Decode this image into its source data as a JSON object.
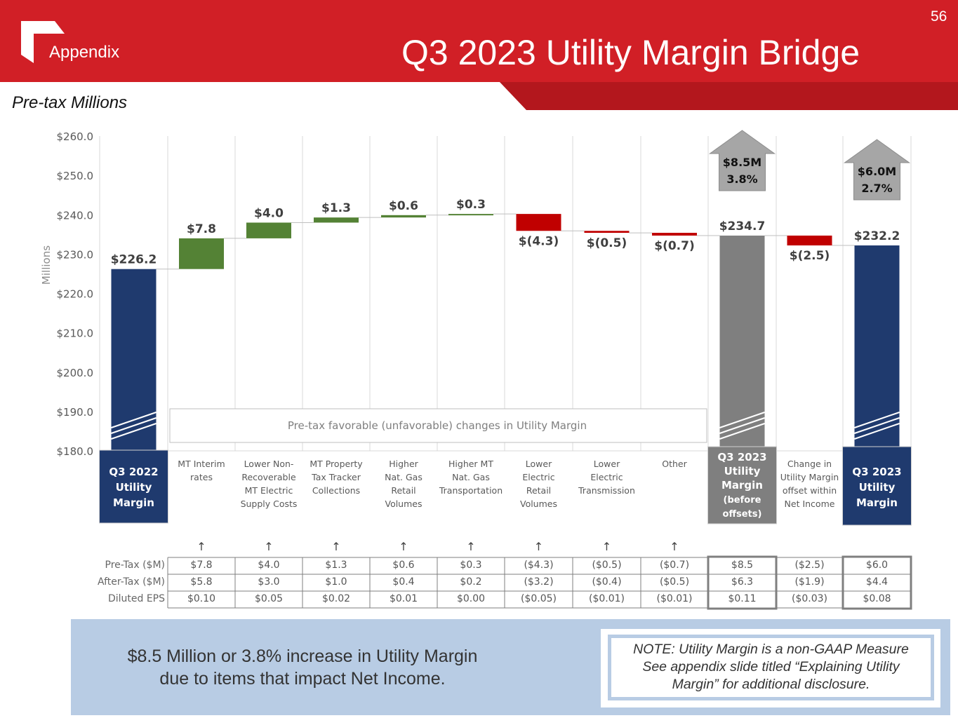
{
  "header": {
    "section": "Appendix",
    "title": "Q3 2023 Utility Margin Bridge",
    "page_number": "56",
    "subtitle": "Pre-tax Millions"
  },
  "colors": {
    "header_red": "#d11f26",
    "base_bar": "#1f3a6e",
    "subtotal_bar": "#7f7f7f",
    "increase_bar": "#548235",
    "decrease_bar": "#c00000",
    "callout_arrow": "#a6a6a6",
    "summary_bg": "#b8cce4"
  },
  "chart_data": {
    "type": "bar",
    "subtype": "waterfall",
    "ylabel": "Millions",
    "ylim": [
      180,
      260
    ],
    "yticks": [
      "$180.0",
      "$190.0",
      "$200.0",
      "$210.0",
      "$220.0",
      "$230.0",
      "$240.0",
      "$250.0",
      "$260.0"
    ],
    "ytick_values": [
      180,
      190,
      200,
      210,
      220,
      230,
      240,
      250,
      260
    ],
    "grid": "vertical-category-separators",
    "bracket_label": "Pre-tax favorable (unfavorable) changes in Utility Margin",
    "bars": [
      {
        "category": "Q3 2022 Utility Margin",
        "kind": "total",
        "start": 0,
        "end": 226.2,
        "label": "$226.2",
        "boxed_label": true,
        "color": "base_bar"
      },
      {
        "category": "MT Interim rates",
        "kind": "increase",
        "start": 226.2,
        "end": 234.0,
        "label": "$7.8"
      },
      {
        "category": "Lower Non-Recoverable MT Electric Supply Costs",
        "kind": "increase",
        "start": 234.0,
        "end": 238.0,
        "label": "$4.0"
      },
      {
        "category": "MT Property Tax Tracker Collections",
        "kind": "increase",
        "start": 238.0,
        "end": 239.3,
        "label": "$1.3"
      },
      {
        "category": "Higher Nat. Gas Retail Volumes",
        "kind": "increase",
        "start": 239.3,
        "end": 239.9,
        "label": "$0.6"
      },
      {
        "category": "Higher MT Nat. Gas Transportation",
        "kind": "increase",
        "start": 239.9,
        "end": 240.2,
        "label": "$0.3"
      },
      {
        "category": "Lower Electric Retail Volumes",
        "kind": "decrease",
        "start": 240.2,
        "end": 235.9,
        "label": "$(4.3)"
      },
      {
        "category": "Lower Electric Transmission",
        "kind": "decrease",
        "start": 235.9,
        "end": 235.4,
        "label": "$(0.5)"
      },
      {
        "category": "Other",
        "kind": "decrease",
        "start": 235.4,
        "end": 234.7,
        "label": "$(0.7)"
      },
      {
        "category": "Q3 2023 Utility Margin (before offsets)",
        "kind": "subtotal",
        "start": 0,
        "end": 234.7,
        "label": "$234.7",
        "boxed_label": true,
        "color": "subtotal_bar",
        "callout": {
          "line1": "$8.5M",
          "line2": "3.8%"
        }
      },
      {
        "category": "Change in Utility Margin offset within Net Income",
        "kind": "decrease",
        "start": 234.7,
        "end": 232.2,
        "label": "$(2.5)"
      },
      {
        "category": "Q3 2023 Utility Margin",
        "kind": "total",
        "start": 0,
        "end": 232.2,
        "label": "$232.2",
        "boxed_label": true,
        "color": "base_bar",
        "callout": {
          "line1": "$6.0M",
          "line2": "2.7%"
        }
      }
    ],
    "category_label_lines": [
      [
        "Q3 2022",
        "Utility",
        "Margin"
      ],
      [
        "MT Interim",
        "rates"
      ],
      [
        "Lower Non-",
        "Recoverable",
        "MT Electric",
        "Supply Costs"
      ],
      [
        "MT Property",
        "Tax Tracker",
        "Collections"
      ],
      [
        "Higher",
        "Nat. Gas",
        "Retail",
        "Volumes"
      ],
      [
        "Higher MT",
        "Nat. Gas",
        "Transportation"
      ],
      [
        "Lower",
        "Electric",
        "Retail",
        "Volumes"
      ],
      [
        "Lower",
        "Electric",
        "Transmission"
      ],
      [
        "Other"
      ],
      [
        "Q3 2023",
        "Utility",
        "Margin",
        "(before",
        "offsets)"
      ],
      [
        "Change in",
        "Utility Margin",
        "offset within",
        "Net Income"
      ],
      [
        "Q3 2023",
        "Utility",
        "Margin"
      ]
    ]
  },
  "table": {
    "arrow_glyph": "↑",
    "arrow_columns": [
      1,
      2,
      3,
      4,
      5,
      6,
      7,
      8
    ],
    "row_labels": [
      "Pre-Tax ($M)",
      "After-Tax ($M)",
      "Diluted EPS"
    ],
    "highlighted_columns": [
      9,
      11
    ],
    "columns": [
      null,
      [
        "$7.8",
        "$5.8",
        "$0.10"
      ],
      [
        "$4.0",
        "$3.0",
        "$0.05"
      ],
      [
        "$1.3",
        "$1.0",
        "$0.02"
      ],
      [
        "$0.6",
        "$0.4",
        "$0.01"
      ],
      [
        "$0.3",
        "$0.2",
        "$0.00"
      ],
      [
        "($4.3)",
        "($3.2)",
        "($0.05)"
      ],
      [
        "($0.5)",
        "($0.4)",
        "($0.01)"
      ],
      [
        "($0.7)",
        "($0.5)",
        "($0.01)"
      ],
      [
        "$8.5",
        "$6.3",
        "$0.11"
      ],
      [
        "($2.5)",
        "($1.9)",
        "($0.03)"
      ],
      [
        "$6.0",
        "$4.4",
        "$0.08"
      ]
    ]
  },
  "footer": {
    "summary_line1": "$8.5 Million or 3.8% increase in Utility Margin",
    "summary_line2": "due to items that impact Net Income.",
    "note_line1": "NOTE: Utility Margin is a non-GAAP Measure",
    "note_line2": "See appendix slide titled “Explaining Utility",
    "note_line3": "Margin” for additional disclosure."
  }
}
